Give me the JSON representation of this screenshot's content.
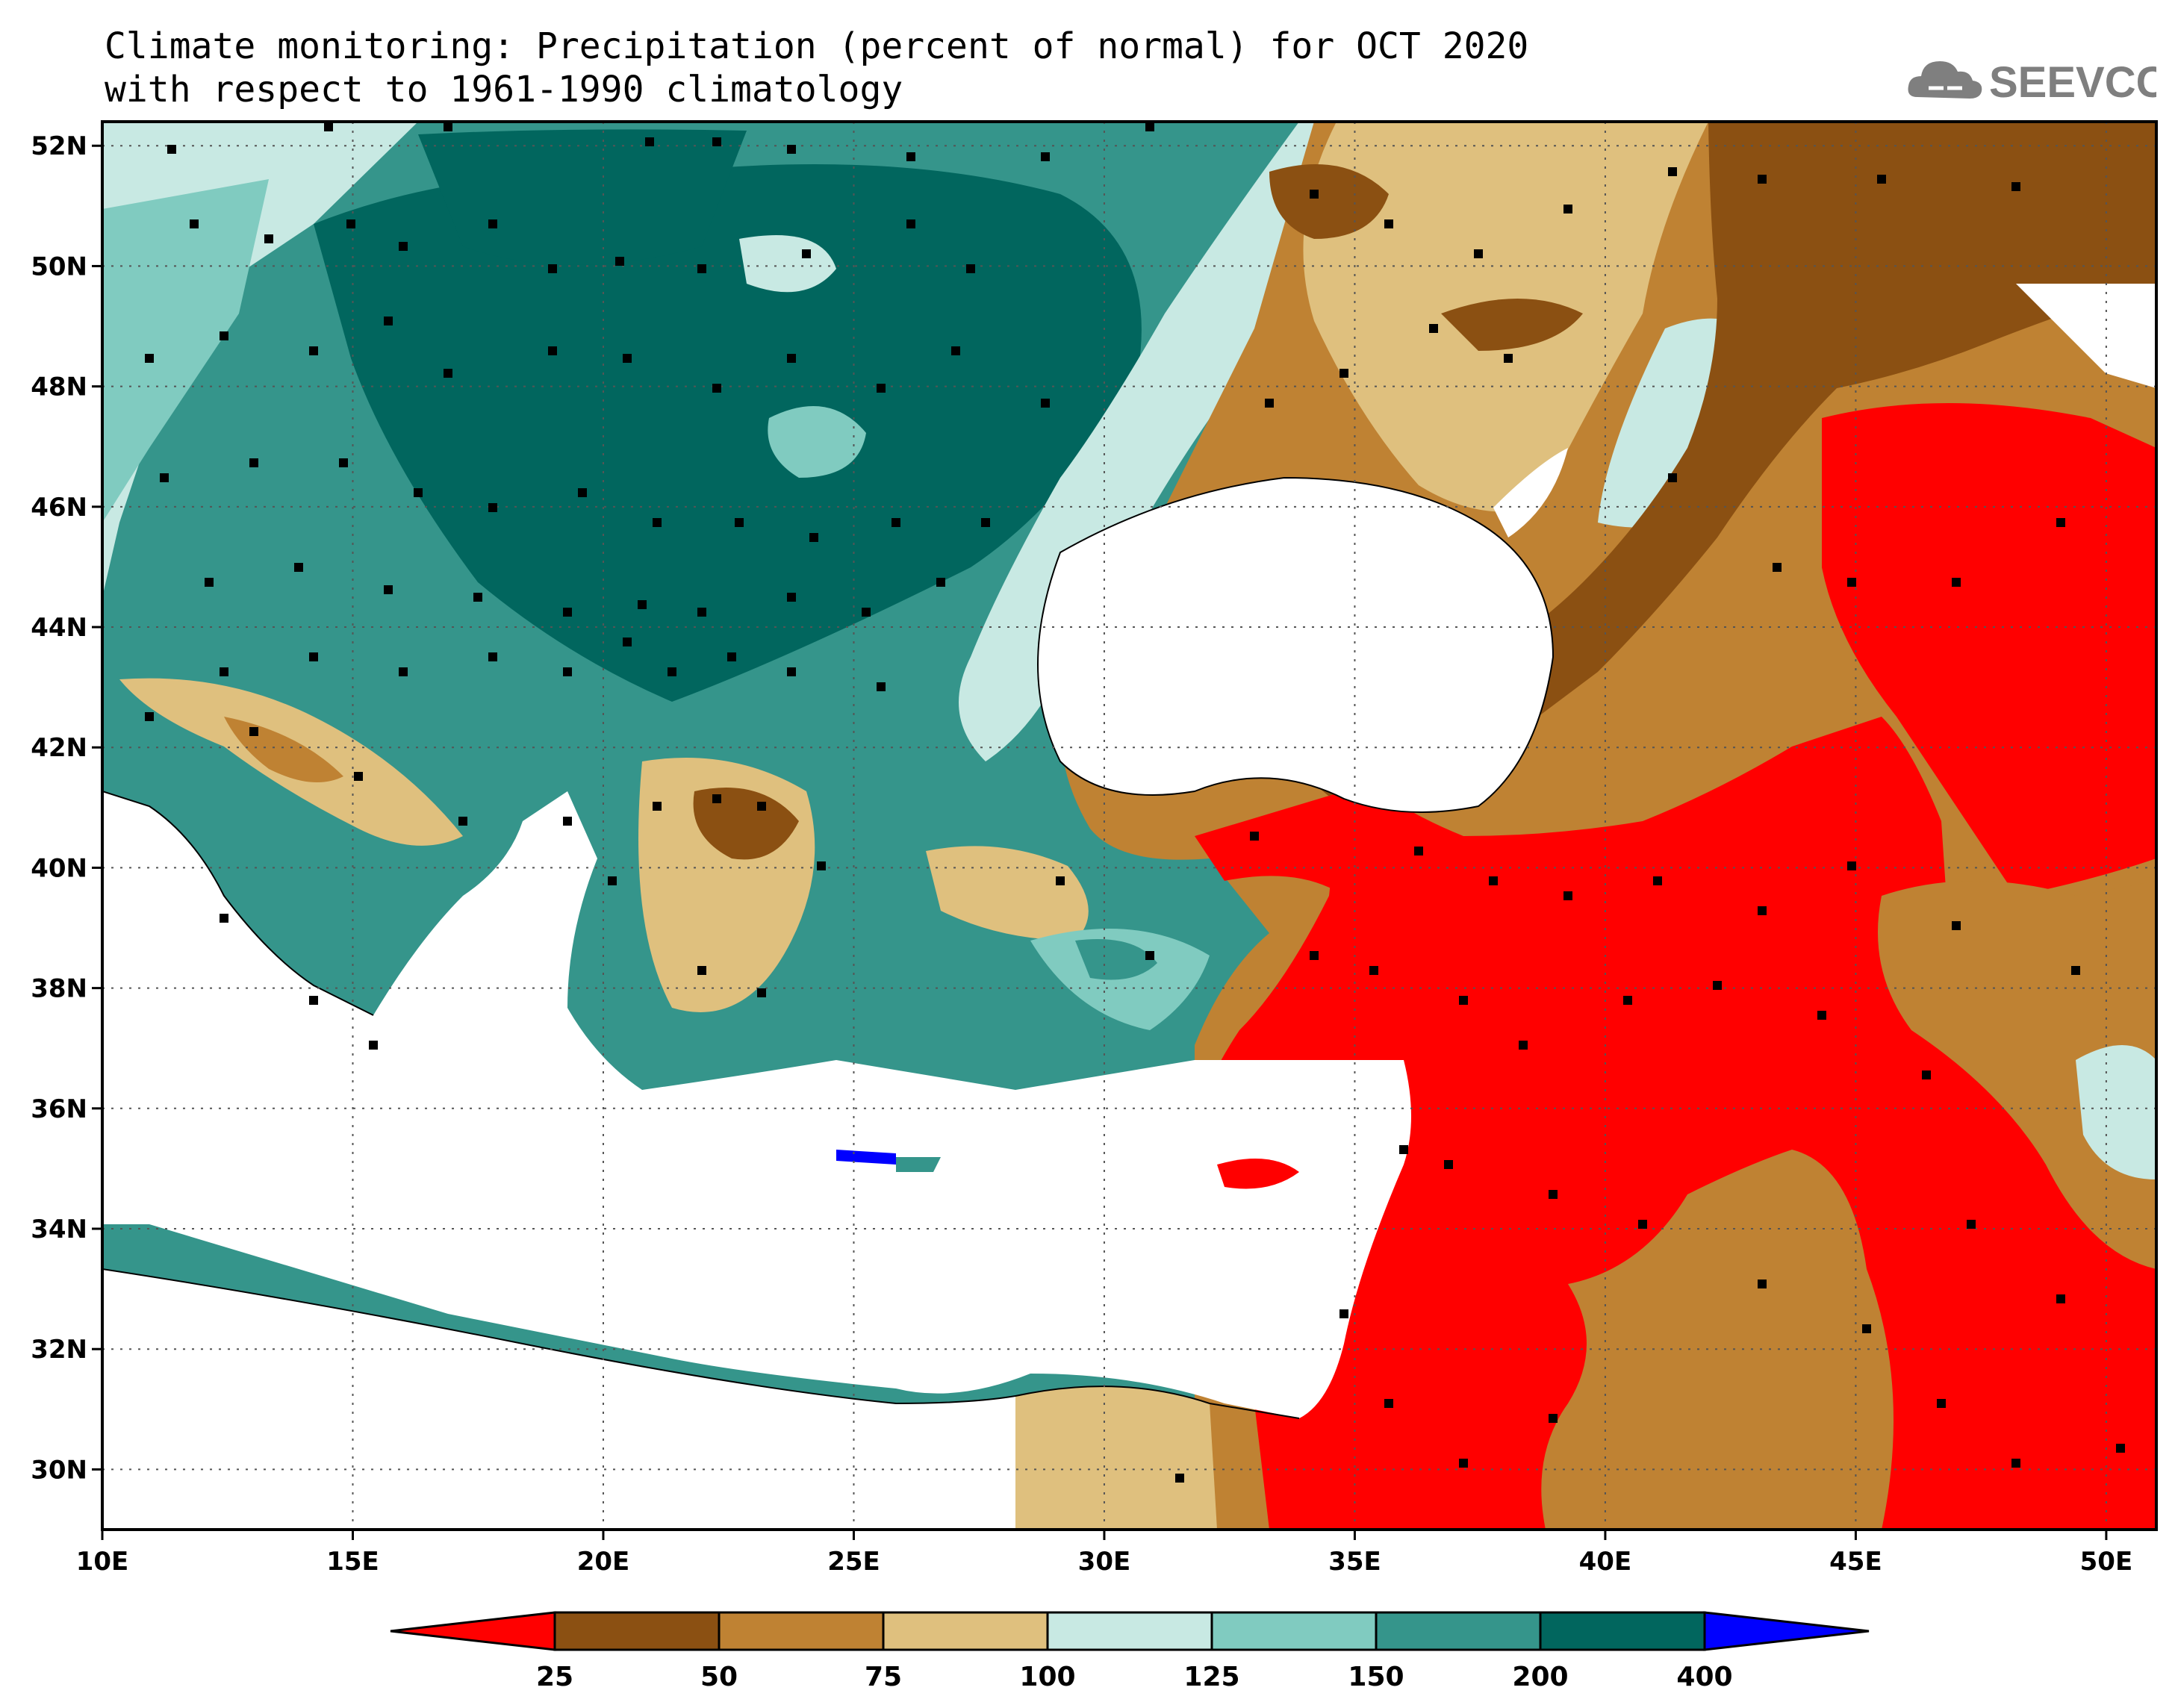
{
  "title": {
    "line1": "Climate monitoring: Precipitation (percent of normal) for OCT 2020",
    "line2": "with respect to 1961-1990 climatology"
  },
  "logo": {
    "icon": "cloud-icon",
    "text": "SEEVCCC"
  },
  "axes": {
    "lat_labels": [
      "52N",
      "50N",
      "48N",
      "46N",
      "44N",
      "42N",
      "40N",
      "38N",
      "36N",
      "34N",
      "32N",
      "30N"
    ],
    "lon_labels": [
      "10E",
      "15E",
      "20E",
      "25E",
      "30E",
      "35E",
      "40E",
      "45E",
      "50E"
    ]
  },
  "colorbar": {
    "colors": [
      "#ff0000",
      "#8b5012",
      "#bf8233",
      "#dfc07e",
      "#c8e9e3",
      "#80cbc0",
      "#35958b",
      "#01665e",
      "#0000ff"
    ],
    "labels": [
      "25",
      "50",
      "75",
      "100",
      "125",
      "150",
      "200",
      "400"
    ]
  },
  "colors": {
    "sea": "#ffffff",
    "very_dry": "#ff0000",
    "very_wet": "#0000ff"
  }
}
